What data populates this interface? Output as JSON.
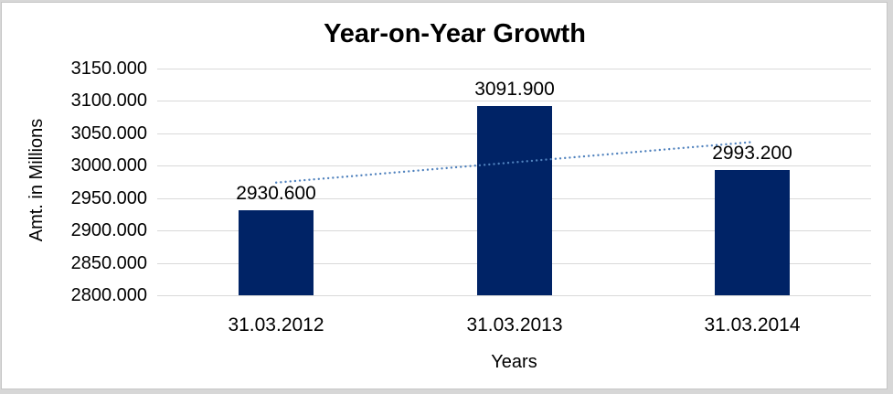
{
  "window": {
    "background": "#ffffff",
    "frame_border": "#c6c6c6",
    "outer_strip": "#d7d7d7"
  },
  "chart_data": {
    "type": "bar",
    "title": "Year-on-Year Growth",
    "xlabel": "Years",
    "ylabel": "Amt. in Millions",
    "categories": [
      "31.03.2012",
      "31.03.2013",
      "31.03.2014"
    ],
    "values": [
      2930.6,
      3091.9,
      2993.2
    ],
    "data_labels": [
      "2930.600",
      "3091.900",
      "2993.200"
    ],
    "y_ticks": [
      {
        "value": 3150,
        "label": "3150.000"
      },
      {
        "value": 3100,
        "label": "3100.000"
      },
      {
        "value": 3050,
        "label": "3050.000"
      },
      {
        "value": 3000,
        "label": "3000.000"
      },
      {
        "value": 2950,
        "label": "2950.000"
      },
      {
        "value": 2900,
        "label": "2900.000"
      },
      {
        "value": 2850,
        "label": "2850.000"
      },
      {
        "value": 2800,
        "label": "2800.000"
      }
    ],
    "ylim": [
      2800,
      3150
    ],
    "grid": true,
    "legend": "none",
    "trendline": {
      "type": "linear",
      "style": "dotted"
    },
    "colors": {
      "bar": "#002366",
      "gridline": "#d9d9d9",
      "trendline": "#4f81bd",
      "text": "#000000"
    }
  }
}
